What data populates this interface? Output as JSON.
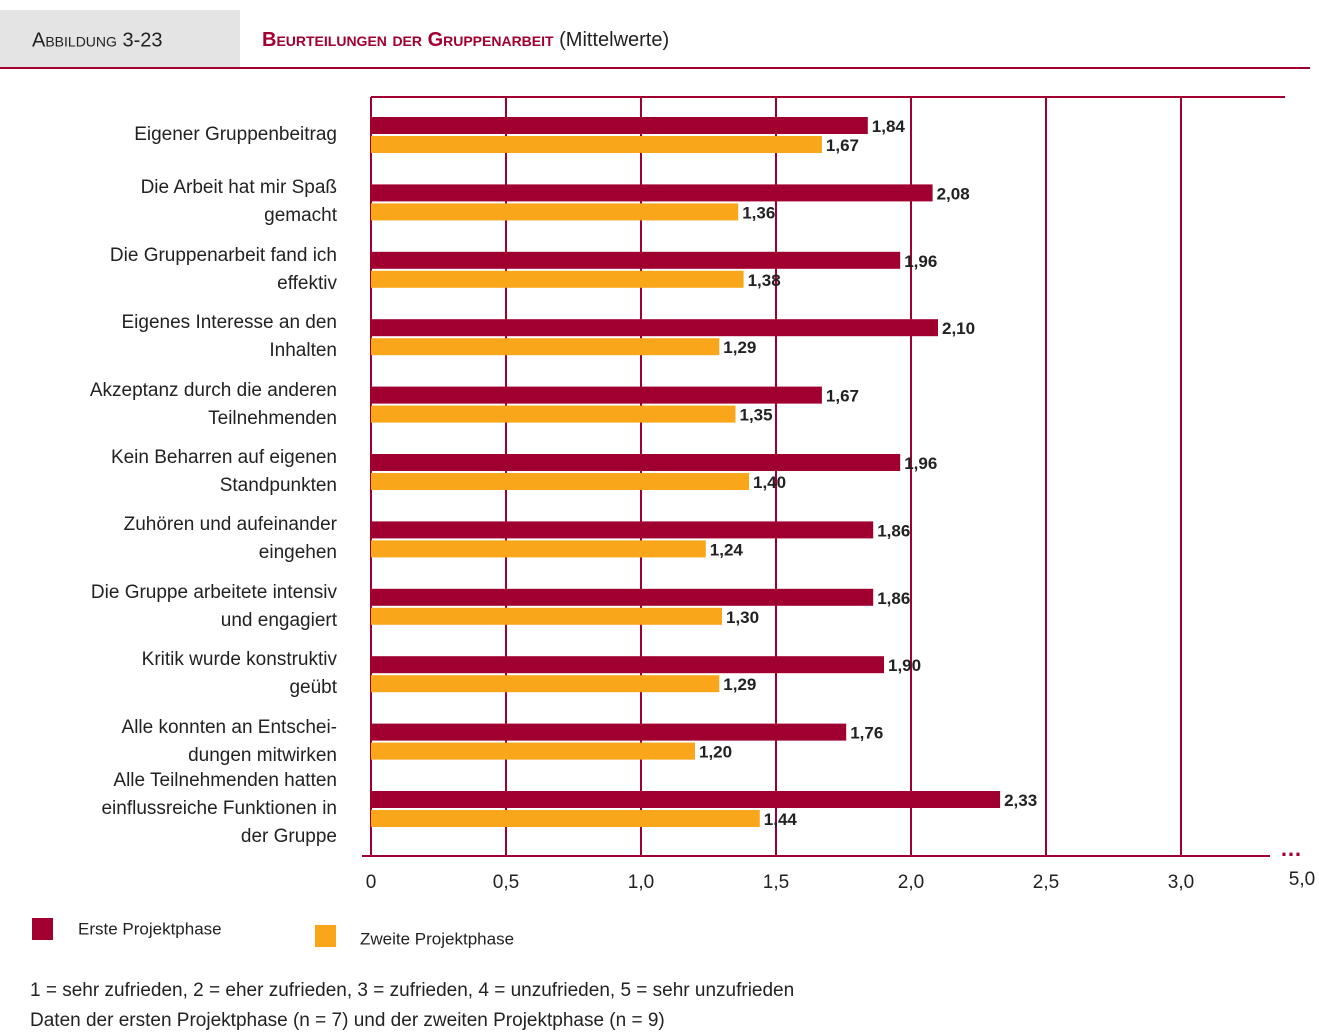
{
  "figure_label": "Abbildung 3-23",
  "chart_data": {
    "type": "bar",
    "orientation": "horizontal",
    "title": "Beurteilungen der Gruppenarbeit",
    "subtitle": "(Mittelwerte)",
    "categories": [
      "Eigener Gruppenbeitrag",
      "Die Arbeit hat mir Spaß\ngemacht",
      "Die Gruppenarbeit fand ich\neffektiv",
      "Eigenes Interesse an den\nInhalten",
      "Akzeptanz durch die anderen\nTeilnehmenden",
      "Kein Beharren auf eigenen\nStandpunkten",
      "Zuhören und aufeinander\neingehen",
      "Die Gruppe arbeitete intensiv\nund engagiert",
      "Kritik wurde konstruktiv\ngeübt",
      "Alle konnten an Entschei-\ndungen mitwirken",
      "Alle Teilnehmenden hatten\neinflussreiche Funktionen in\nder Gruppe"
    ],
    "series": [
      {
        "name": "Erste Projektphase",
        "color": "#a0002f",
        "values": [
          1.84,
          2.08,
          1.96,
          2.1,
          1.67,
          1.96,
          1.86,
          1.86,
          1.9,
          1.76,
          2.33
        ],
        "value_labels": [
          "1,84",
          "2,08",
          "1,96",
          "2,10",
          "1,67",
          "1,96",
          "1,86",
          "1,86",
          "1,90",
          "1,76",
          "2,33"
        ]
      },
      {
        "name": "Zweite Projektphase",
        "color": "#f9a61b",
        "values": [
          1.67,
          1.36,
          1.38,
          1.29,
          1.35,
          1.4,
          1.24,
          1.3,
          1.29,
          1.2,
          1.44
        ],
        "value_labels": [
          "1,67",
          "1,36",
          "1,38",
          "1,29",
          "1,35",
          "1,40",
          "1,24",
          "1,30",
          "1,29",
          "1,20",
          "1,44"
        ]
      }
    ],
    "xlim": [
      0,
      3.0
    ],
    "xticks": [
      0,
      {
        "value": 0.5,
        "label": "0,5"
      },
      {
        "value": 1.0,
        "label": "1,0"
      },
      {
        "value": 1.5,
        "label": "1,5"
      },
      {
        "value": 2.0,
        "label": "2,0"
      },
      {
        "value": 2.5,
        "label": "2,5"
      },
      {
        "value": 3.0,
        "label": "3,0"
      },
      {
        "value": 5.0,
        "label": "5,0"
      }
    ],
    "axis_break": true,
    "grid": true,
    "legend": "bottom-left",
    "notes": [
      "1 = sehr zufrieden, 2 = eher zufrieden, 3 = zufrieden, 4 = unzufrieden, 5 = sehr unzufrieden",
      "Daten der ersten Projektphase (n = 7) und der zweiten Projektphase (n = 9)"
    ]
  }
}
